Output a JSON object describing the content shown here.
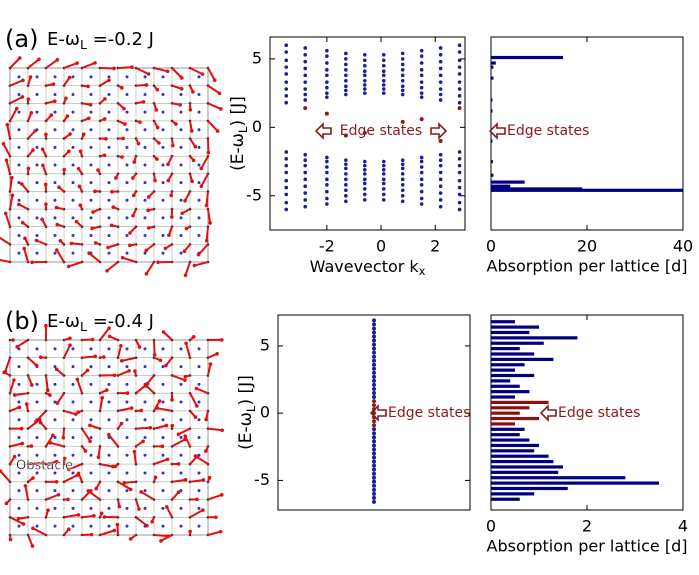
{
  "chart_data": [
    {
      "type": "lattice",
      "label": "(a)",
      "title": {
        "pre": "E-ω",
        "sub": "L",
        "post": " =-0.2 J"
      }
    },
    {
      "type": "scatter",
      "color": "#1c1c9c",
      "xlim": [
        -4.1,
        3.1
      ],
      "ylim": [
        -7.5,
        6.6
      ],
      "xticks": [
        -2,
        0,
        2
      ],
      "yticks": [
        -5,
        0,
        5
      ],
      "xlabel": {
        "pre": "Wavevector k",
        "sub": "x"
      },
      "ylabel": {
        "pre": "(E-ω",
        "sub": "L",
        "post": ") [J]"
      },
      "columns": [
        {
          "x": -3.5,
          "values": [
            6.0,
            5.5,
            4.9,
            4.4,
            3.9,
            3.3,
            2.8,
            2.3,
            1.8,
            -1.8,
            -2.3,
            -2.8,
            -3.3,
            -3.9,
            -4.4,
            -4.9,
            -5.5,
            -6.0
          ]
        },
        {
          "x": -2.8,
          "values": [
            5.8,
            5.3,
            4.8,
            4.3,
            3.8,
            3.3,
            2.8,
            2.4,
            2.0,
            -2.0,
            -2.4,
            -2.8,
            -3.3,
            -3.8,
            -4.3,
            -4.8,
            -5.3,
            -5.8
          ]
        },
        {
          "x": -2.0,
          "values": [
            5.6,
            5.2,
            4.7,
            4.2,
            3.8,
            3.3,
            2.9,
            2.5,
            2.2,
            -2.2,
            -2.5,
            -2.9,
            -3.3,
            -3.8,
            -4.2,
            -4.7,
            -5.2,
            -5.6
          ]
        },
        {
          "x": -1.3,
          "values": [
            5.4,
            5.0,
            4.6,
            4.2,
            3.8,
            3.4,
            3.0,
            2.7,
            2.4,
            -2.4,
            -2.7,
            -3.0,
            -3.4,
            -3.8,
            -4.2,
            -4.6,
            -5.0,
            -5.4
          ]
        },
        {
          "x": -0.6,
          "values": [
            5.3,
            4.9,
            4.5,
            4.1,
            3.8,
            3.4,
            3.1,
            2.8,
            2.5,
            -2.5,
            -2.8,
            -3.1,
            -3.4,
            -3.8,
            -4.1,
            -4.5,
            -4.9,
            -5.3
          ]
        },
        {
          "x": 0.1,
          "values": [
            5.3,
            4.9,
            4.5,
            4.1,
            3.8,
            3.4,
            3.1,
            2.8,
            2.5,
            -2.5,
            -2.8,
            -3.1,
            -3.4,
            -3.8,
            -4.1,
            -4.5,
            -4.9,
            -5.3
          ]
        },
        {
          "x": 0.8,
          "values": [
            5.4,
            5.0,
            4.6,
            4.2,
            3.8,
            3.4,
            3.0,
            2.7,
            2.4,
            -2.4,
            -2.7,
            -3.0,
            -3.4,
            -3.8,
            -4.2,
            -4.6,
            -5.0,
            -5.4
          ]
        },
        {
          "x": 1.5,
          "values": [
            5.6,
            5.2,
            4.7,
            4.2,
            3.8,
            3.3,
            2.9,
            2.5,
            2.2,
            -2.2,
            -2.5,
            -2.9,
            -3.3,
            -3.8,
            -4.2,
            -4.7,
            -5.2,
            -5.6
          ]
        },
        {
          "x": 2.2,
          "values": [
            5.8,
            5.3,
            4.8,
            4.3,
            3.8,
            3.3,
            2.8,
            2.4,
            2.0,
            -2.0,
            -2.4,
            -2.8,
            -3.3,
            -3.8,
            -4.3,
            -4.8,
            -5.3,
            -5.8
          ]
        },
        {
          "x": 2.9,
          "values": [
            6.0,
            5.5,
            4.9,
            4.4,
            3.9,
            3.3,
            2.8,
            2.3,
            1.8,
            -1.8,
            -2.3,
            -2.8,
            -3.3,
            -3.9,
            -4.4,
            -4.9,
            -5.5,
            -6.0
          ]
        }
      ],
      "edge": {
        "color": "#8b1a1a",
        "x": [
          -2.8,
          -2.0,
          -1.3,
          -0.6,
          0.8,
          1.5,
          2.2,
          2.9
        ],
        "values": [
          1.4,
          1.0,
          -0.6,
          -0.4,
          0.4,
          0.6,
          -1.0,
          1.4
        ]
      },
      "annotation": "Edge states"
    },
    {
      "type": "hbar",
      "xlim": [
        0,
        40
      ],
      "ylim": [
        -7.5,
        6.6
      ],
      "xticks": [
        0,
        20,
        40
      ],
      "xlabel": "Absorption per lattice [d]",
      "series": [
        {
          "color": "#000080",
          "y": [
            5.1,
            4.7,
            4.4,
            3.6,
            2.0,
            1.2,
            -1.0,
            -2.5,
            -3.5,
            -4.0,
            -4.3,
            -4.5,
            -4.6
          ],
          "values": [
            15,
            1,
            0.5,
            0.5,
            0.3,
            0.3,
            0.3,
            0.4,
            0.5,
            7,
            4,
            19,
            40
          ]
        }
      ],
      "annotation": "Edge states"
    },
    {
      "type": "lattice",
      "label": "(b)",
      "title": {
        "pre": "E-ω",
        "sub": "L",
        "post": " =-0.4 J"
      },
      "annotation": "Obstacle"
    },
    {
      "type": "strip",
      "ylim": [
        -7.2,
        7.3
      ],
      "yticks": [
        -5,
        0,
        5
      ],
      "ylabel": {
        "pre": "(E-ω",
        "sub": "L",
        "post": ") [J]"
      },
      "series": [
        {
          "color": "#1c1c9c",
          "values": [
            6.9,
            6.6,
            6.3,
            6.0,
            5.7,
            5.4,
            5.1,
            4.8,
            4.5,
            4.2,
            3.9,
            3.6,
            3.3,
            3.0,
            2.7,
            2.4,
            2.1,
            1.8,
            1.5,
            1.2,
            -1.2,
            -1.5,
            -1.8,
            -2.1,
            -2.4,
            -2.7,
            -3.0,
            -3.3,
            -3.6,
            -3.9,
            -4.2,
            -4.5,
            -4.8,
            -5.1,
            -5.4,
            -5.7,
            -6.0,
            -6.3,
            -6.6
          ]
        },
        {
          "color": "#8b1a1a",
          "values": [
            0.9,
            0.6,
            0.3,
            0.0,
            -0.3,
            -0.6,
            -0.9
          ]
        }
      ],
      "annotation": "Edge states"
    },
    {
      "type": "hbar",
      "xlim": [
        0,
        4
      ],
      "ylim": [
        -7.2,
        7.3
      ],
      "xticks": [
        0,
        2,
        4
      ],
      "xlabel": "Absorption per lattice [d]",
      "series": [
        {
          "color": "#000080",
          "y": [
            6.8,
            6.4,
            6.0,
            5.6,
            5.2,
            4.8,
            4.4,
            4.0,
            3.6,
            3.2,
            2.8,
            2.4,
            2.0,
            1.6,
            1.2,
            -1.2,
            -1.6,
            -2.0,
            -2.4,
            -2.8,
            -3.2,
            -3.6,
            -4.0,
            -4.4,
            -4.8,
            -5.2,
            -5.6,
            -6.0,
            -6.4
          ],
          "values": [
            0.5,
            1.0,
            0.8,
            1.8,
            1.1,
            0.6,
            0.9,
            1.3,
            0.7,
            0.5,
            0.9,
            0.4,
            0.6,
            0.8,
            0.5,
            0.7,
            0.6,
            0.8,
            1.0,
            0.9,
            1.2,
            1.3,
            1.5,
            1.4,
            2.8,
            3.5,
            1.6,
            0.9,
            0.6
          ]
        },
        {
          "color": "#8b1010",
          "y": [
            0.8,
            0.4,
            0.0,
            -0.4,
            -0.8
          ],
          "values": [
            1.2,
            0.8,
            0.6,
            1.0,
            0.5
          ]
        }
      ],
      "annotation": "Edge states"
    }
  ]
}
